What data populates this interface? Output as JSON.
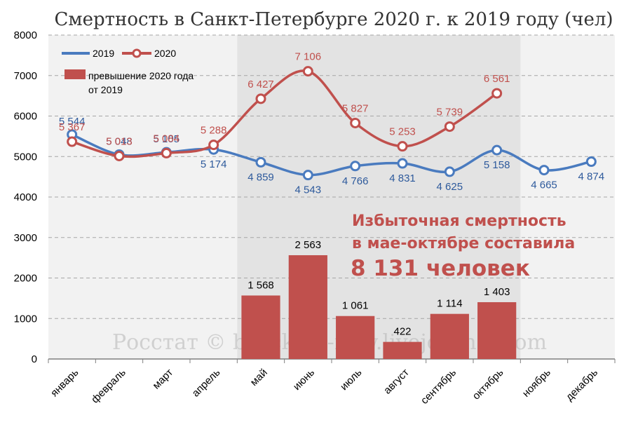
{
  "title": "Смертность в Санкт-Петербурге 2020 г. к 2019 году (чел)",
  "legend": {
    "s2019": "2019",
    "s2020": "2020",
    "excess_line1": "превышение 2020 года",
    "excess_line2": "от 2019"
  },
  "annotation": {
    "line1": "Избыточная смертность",
    "line2": "в мае-октябре составила",
    "line3": "8 131 человек"
  },
  "watermark": "Росстат © burckina-new.livejournal.com",
  "colors": {
    "s2019": "#4a7bbf",
    "s2020": "#c0504d",
    "bar": "#c0504d",
    "highlight_band": "#e3e3e3",
    "plot_bg": "#f2f2f2"
  },
  "chart_data": {
    "type": "line",
    "categories": [
      "январь",
      "февраль",
      "март",
      "апрель",
      "май",
      "июнь",
      "июль",
      "август",
      "сентябрь",
      "октябрь",
      "ноябрь",
      "декабрь"
    ],
    "ylim": [
      0,
      8000
    ],
    "yticks": [
      0,
      1000,
      2000,
      3000,
      4000,
      5000,
      6000,
      7000,
      8000
    ],
    "grid": true,
    "legend_position": "top-left",
    "highlight_range": [
      "май",
      "октябрь"
    ],
    "series": [
      {
        "name": "2019",
        "kind": "line",
        "values": [
          5544,
          5048,
          5105,
          5174,
          4859,
          4543,
          4766,
          4831,
          4625,
          5158,
          4665,
          4874
        ],
        "labels": [
          "5 544",
          "5 048",
          "5 105",
          "5 174",
          "4 859",
          "4 543",
          "4 766",
          "4 831",
          "4 625",
          "5 158",
          "4 665",
          "4 874"
        ]
      },
      {
        "name": "2020",
        "kind": "line",
        "values": [
          5367,
          5013,
          5084,
          5288,
          6427,
          7106,
          5827,
          5253,
          5739,
          6561,
          null,
          null
        ],
        "labels": [
          "5 367",
          "5 013",
          "5 084",
          "5 288",
          "6 427",
          "7 106",
          "5 827",
          "5 253",
          "5 739",
          "6 561",
          null,
          null
        ]
      },
      {
        "name": "превышение 2020 года от 2019",
        "kind": "bar",
        "values": [
          null,
          null,
          null,
          null,
          1568,
          2563,
          1061,
          422,
          1114,
          1403,
          null,
          null
        ],
        "labels": [
          null,
          null,
          null,
          null,
          "1 568",
          "2 563",
          "1 061",
          "422",
          "1 114",
          "1 403",
          null,
          null
        ]
      }
    ]
  }
}
